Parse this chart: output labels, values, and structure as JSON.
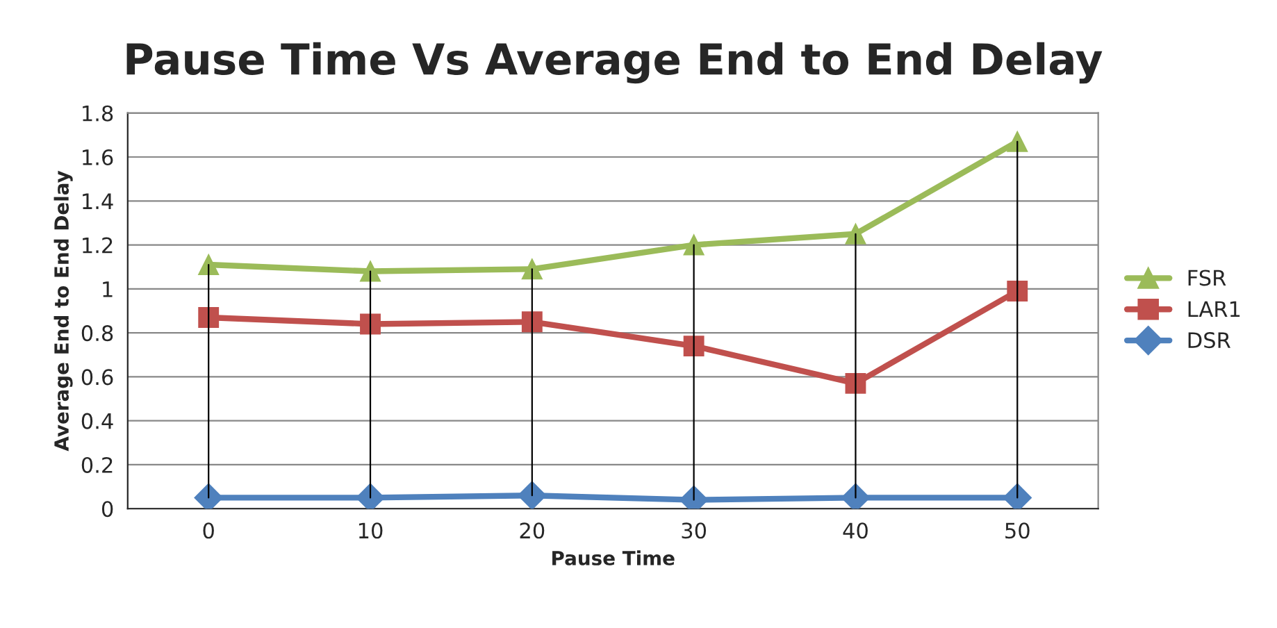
{
  "chart_data": {
    "type": "line",
    "title": "Pause Time Vs Average End to End Delay",
    "xlabel": "Pause Time",
    "ylabel": "Average End to End Delay",
    "categories": [
      "0",
      "10",
      "20",
      "30",
      "40",
      "50"
    ],
    "ylim": [
      0,
      1.8
    ],
    "yticks": [
      0,
      0.2,
      0.4,
      0.6,
      0.8,
      1,
      1.2,
      1.4,
      1.6,
      1.8
    ],
    "grid": "y",
    "legend": "right",
    "series": [
      {
        "name": "FSR",
        "color": "#9bbb59",
        "marker": "triangle",
        "values": [
          1.11,
          1.08,
          1.09,
          1.2,
          1.25,
          1.67
        ],
        "errors": [
          [
            0.05,
            1.11
          ],
          [
            0.05,
            1.08
          ],
          [
            0.06,
            1.09
          ],
          [
            0.04,
            1.2
          ],
          [
            0.05,
            1.25
          ],
          [
            0.05,
            1.67
          ]
        ]
      },
      {
        "name": "LAR1",
        "color": "#c0504d",
        "marker": "square",
        "values": [
          0.87,
          0.84,
          0.85,
          0.74,
          0.57,
          0.99
        ]
      },
      {
        "name": "DSR",
        "color": "#4f81bd",
        "marker": "diamond",
        "values": [
          0.05,
          0.05,
          0.06,
          0.04,
          0.05,
          0.05
        ]
      }
    ]
  }
}
